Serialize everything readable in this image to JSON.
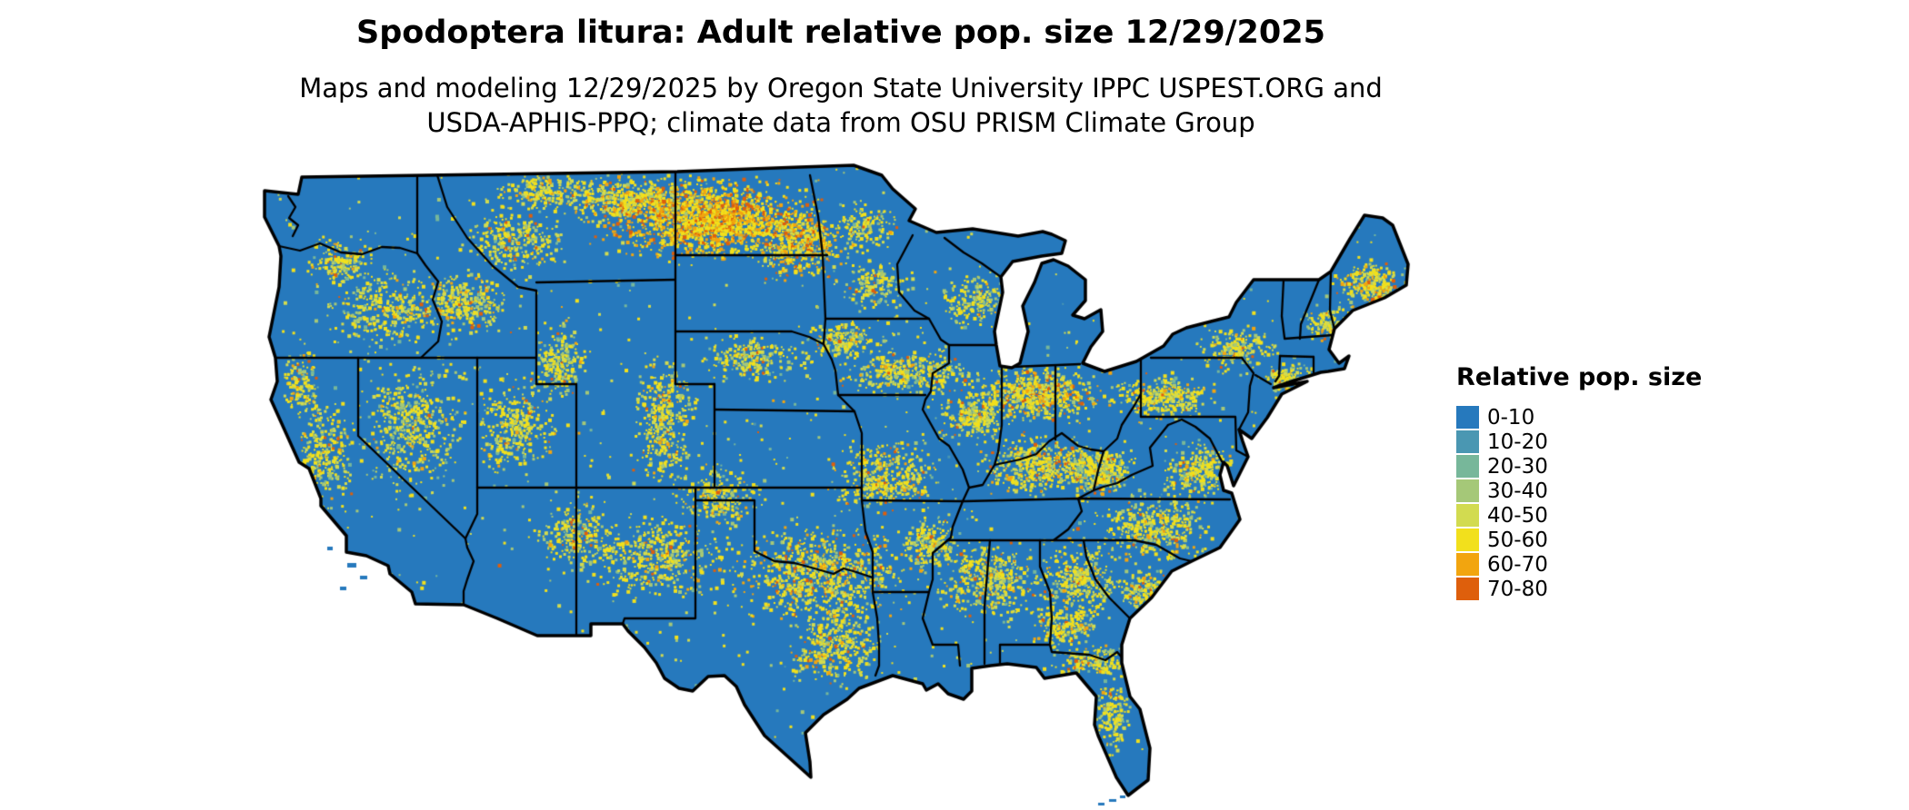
{
  "header": {
    "title": "Spodoptera litura: Adult relative pop. size 12/29/2025",
    "subtitle_line1": "Maps and modeling 12/29/2025 by Oregon State University IPPC USPEST.ORG and",
    "subtitle_line2": "USDA-APHIS-PPQ; climate data from OSU PRISM Climate Group"
  },
  "legend": {
    "title": "Relative pop. size",
    "items": [
      {
        "label": "0-10",
        "color": "#2679BD"
      },
      {
        "label": "10-20",
        "color": "#4A97B2"
      },
      {
        "label": "20-30",
        "color": "#77B79A"
      },
      {
        "label": "30-40",
        "color": "#A5C878"
      },
      {
        "label": "40-50",
        "color": "#D2DB50"
      },
      {
        "label": "50-60",
        "color": "#F2E01C"
      },
      {
        "label": "60-70",
        "color": "#F2A50F"
      },
      {
        "label": "70-80",
        "color": "#DE5F0C"
      }
    ]
  },
  "map": {
    "region": "Contiguous United States",
    "base_color": "#2679BD",
    "border_color": "#000000",
    "background": "#FFFFFF"
  }
}
